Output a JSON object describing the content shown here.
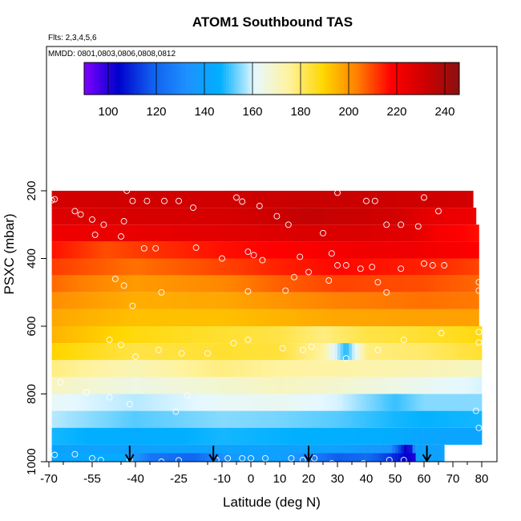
{
  "header": {
    "title": "ATOM1 Southbound TAS",
    "flights": "Flts: 2,3,4,5,6",
    "dates": "MMDD: 0801,0803,0806,0808,0812"
  },
  "chart_data": {
    "type": "heatmap",
    "title": "ATOM1 Southbound TAS",
    "xlabel": "Latitude (deg N)",
    "ylabel": "PSXC (mbar)",
    "xlim": [
      -70,
      82
    ],
    "ylim": [
      1000,
      0
    ],
    "x_ticks": [
      -70,
      -55,
      -40,
      -25,
      -10,
      0,
      10,
      20,
      30,
      40,
      50,
      60,
      70,
      80
    ],
    "x_tick_labels": [
      "-70",
      "-55",
      "-40",
      "-25",
      "-10",
      "0",
      "10",
      "20",
      "30",
      "40",
      "50",
      "60",
      "70",
      "80"
    ],
    "y_ticks": [
      200,
      400,
      600,
      800,
      1000
    ],
    "y_tick_labels": [
      "200",
      "400",
      "600",
      "800",
      "1000"
    ],
    "colorbar": {
      "range": [
        90,
        246
      ],
      "ticks": [
        100,
        120,
        140,
        160,
        180,
        200,
        220,
        240
      ],
      "tick_labels": [
        "100",
        "120",
        "140",
        "160",
        "180",
        "200",
        "220",
        "240"
      ],
      "colors": [
        "#8000ff",
        "#0000cd",
        "#1060ee",
        "#1e90ff",
        "#00b0ff",
        "#e6f8ff",
        "#fff3a0",
        "#ffd700",
        "#ff7f00",
        "#ff0000",
        "#cd0000",
        "#8b1010"
      ]
    },
    "pressure_levels": [
      {
        "p": 225,
        "lat_min": -69,
        "lat_max": 77,
        "tas": [
          [
            -69,
            230
          ],
          [
            -40,
            231
          ],
          [
            -10,
            231
          ],
          [
            20,
            233
          ],
          [
            45,
            232
          ],
          [
            60,
            231
          ],
          [
            77,
            230
          ]
        ]
      },
      {
        "p": 275,
        "lat_min": -69,
        "lat_max": 78,
        "tas": [
          [
            -69,
            227
          ],
          [
            -40,
            229
          ],
          [
            -10,
            229
          ],
          [
            20,
            234
          ],
          [
            40,
            232
          ],
          [
            52,
            230
          ],
          [
            60,
            225
          ],
          [
            78,
            222
          ]
        ]
      },
      {
        "p": 325,
        "lat_min": -69,
        "lat_max": 79,
        "tas": [
          [
            -69,
            222
          ],
          [
            -40,
            224
          ],
          [
            -10,
            226
          ],
          [
            20,
            228
          ],
          [
            40,
            228
          ],
          [
            55,
            226
          ],
          [
            65,
            220
          ],
          [
            79,
            216
          ]
        ]
      },
      {
        "p": 375,
        "lat_min": -69,
        "lat_max": 79,
        "tas": [
          [
            -69,
            216
          ],
          [
            -50,
            209
          ],
          [
            -35,
            212
          ],
          [
            -10,
            216
          ],
          [
            20,
            219
          ],
          [
            40,
            222
          ],
          [
            55,
            222
          ],
          [
            79,
            218
          ]
        ]
      },
      {
        "p": 425,
        "lat_min": -69,
        "lat_max": 79,
        "tas": [
          [
            -69,
            211
          ],
          [
            -40,
            205
          ],
          [
            -10,
            210
          ],
          [
            10,
            214
          ],
          [
            30,
            217
          ],
          [
            60,
            214
          ],
          [
            79,
            210
          ]
        ]
      },
      {
        "p": 475,
        "lat_min": -69,
        "lat_max": 79,
        "tas": [
          [
            -69,
            206
          ],
          [
            -40,
            199
          ],
          [
            -10,
            202
          ],
          [
            10,
            207
          ],
          [
            30,
            210
          ],
          [
            60,
            209
          ],
          [
            79,
            206
          ]
        ]
      },
      {
        "p": 525,
        "lat_min": -69,
        "lat_max": 79,
        "tas": [
          [
            -69,
            201
          ],
          [
            -40,
            196
          ],
          [
            -10,
            197
          ],
          [
            10,
            200
          ],
          [
            30,
            203
          ],
          [
            60,
            205
          ],
          [
            79,
            204
          ]
        ]
      },
      {
        "p": 575,
        "lat_min": -69,
        "lat_max": 79,
        "tas": [
          [
            -69,
            197
          ],
          [
            -40,
            193
          ],
          [
            -10,
            193
          ],
          [
            10,
            195
          ],
          [
            30,
            197
          ],
          [
            60,
            198
          ],
          [
            79,
            198
          ]
        ]
      },
      {
        "p": 625,
        "lat_min": -69,
        "lat_max": 80,
        "tas": [
          [
            -69,
            195
          ],
          [
            -40,
            188
          ],
          [
            -10,
            185
          ],
          [
            10,
            183
          ],
          [
            25,
            178
          ],
          [
            40,
            183
          ],
          [
            60,
            185
          ],
          [
            80,
            188
          ]
        ]
      },
      {
        "p": 675,
        "lat_min": -69,
        "lat_max": 80,
        "tas": [
          [
            -69,
            190
          ],
          [
            -40,
            183
          ],
          [
            -10,
            185
          ],
          [
            10,
            184
          ],
          [
            25,
            175
          ],
          [
            33,
            148
          ],
          [
            40,
            178
          ],
          [
            60,
            180
          ],
          [
            80,
            185
          ]
        ]
      },
      {
        "p": 725,
        "lat_min": -69,
        "lat_max": 80,
        "tas": [
          [
            -69,
            178
          ],
          [
            -40,
            172
          ],
          [
            -10,
            178
          ],
          [
            10,
            175
          ],
          [
            30,
            174
          ],
          [
            60,
            172
          ],
          [
            80,
            170
          ]
        ]
      },
      {
        "p": 775,
        "lat_min": -69,
        "lat_max": 80,
        "tas": [
          [
            -69,
            170
          ],
          [
            -40,
            165
          ],
          [
            -10,
            168
          ],
          [
            10,
            170
          ],
          [
            30,
            168
          ],
          [
            60,
            163
          ],
          [
            80,
            160
          ]
        ]
      },
      {
        "p": 825,
        "lat_min": -69,
        "lat_max": 80,
        "tas": [
          [
            -69,
            162
          ],
          [
            -40,
            158
          ],
          [
            -10,
            162
          ],
          [
            10,
            163
          ],
          [
            30,
            160
          ],
          [
            50,
            150
          ],
          [
            60,
            155
          ],
          [
            80,
            155
          ]
        ]
      },
      {
        "p": 875,
        "lat_min": -69,
        "lat_max": 80,
        "tas": [
          [
            -69,
            158
          ],
          [
            -40,
            152
          ],
          [
            -10,
            155
          ],
          [
            10,
            154
          ],
          [
            30,
            152
          ],
          [
            50,
            148
          ],
          [
            60,
            147
          ],
          [
            80,
            148
          ]
        ]
      },
      {
        "p": 925,
        "lat_min": -69,
        "lat_max": 80,
        "tas": [
          [
            -69,
            148
          ],
          [
            -40,
            145
          ],
          [
            -10,
            148
          ],
          [
            10,
            147
          ],
          [
            30,
            146
          ],
          [
            48,
            145
          ],
          [
            60,
            142
          ],
          [
            80,
            142
          ]
        ]
      },
      {
        "p": 975,
        "lat_min": -69,
        "lat_max": 67,
        "tas": [
          [
            -69,
            141
          ],
          [
            -40,
            140
          ],
          [
            -10,
            141
          ],
          [
            10,
            140
          ],
          [
            30,
            140
          ],
          [
            48,
            135
          ],
          [
            52,
            112
          ],
          [
            55,
            98
          ],
          [
            57,
            140
          ],
          [
            67,
            140
          ]
        ]
      },
      {
        "p": 1000,
        "lat_min": -69,
        "lat_max": 57,
        "tas": [
          [
            -69,
            142
          ],
          [
            -45,
            145
          ],
          [
            -35,
            125
          ],
          [
            -20,
            120
          ],
          [
            -5,
            138
          ],
          [
            10,
            140
          ],
          [
            30,
            118
          ],
          [
            40,
            122
          ],
          [
            50,
            110
          ],
          [
            57,
            100
          ]
        ]
      }
    ],
    "observations": [
      [
        -68,
        225
      ],
      [
        -69,
        228
      ],
      [
        -61,
        260
      ],
      [
        -59,
        270
      ],
      [
        -55,
        285
      ],
      [
        -54,
        330
      ],
      [
        -51,
        300
      ],
      [
        -44,
        290
      ],
      [
        -43,
        200
      ],
      [
        -41,
        230
      ],
      [
        -36,
        230
      ],
      [
        -30,
        230
      ],
      [
        -25,
        230
      ],
      [
        -20,
        250
      ],
      [
        -5,
        220
      ],
      [
        -3,
        232
      ],
      [
        3,
        245
      ],
      [
        9,
        275
      ],
      [
        13,
        300
      ],
      [
        22,
        183
      ],
      [
        30,
        206
      ],
      [
        40,
        230
      ],
      [
        43,
        230
      ],
      [
        47,
        300
      ],
      [
        52,
        300
      ],
      [
        58,
        305
      ],
      [
        60,
        220
      ],
      [
        65,
        260
      ],
      [
        -45,
        335
      ],
      [
        -37,
        370
      ],
      [
        -33,
        370
      ],
      [
        -19,
        368
      ],
      [
        -10,
        400
      ],
      [
        -1,
        380
      ],
      [
        1,
        390
      ],
      [
        4,
        405
      ],
      [
        17,
        395
      ],
      [
        25,
        325
      ],
      [
        28,
        385
      ],
      [
        30,
        420
      ],
      [
        42,
        425
      ],
      [
        52,
        430
      ],
      [
        60,
        415
      ],
      [
        63,
        420
      ],
      [
        67,
        420
      ],
      [
        -47,
        460
      ],
      [
        -44,
        480
      ],
      [
        -41,
        540
      ],
      [
        -31,
        500
      ],
      [
        -1,
        497
      ],
      [
        12,
        495
      ],
      [
        15,
        455
      ],
      [
        20,
        440
      ],
      [
        27,
        465
      ],
      [
        33,
        420
      ],
      [
        38,
        430
      ],
      [
        44,
        470
      ],
      [
        47,
        500
      ],
      [
        79,
        470
      ],
      [
        79,
        495
      ],
      [
        -49,
        640
      ],
      [
        -45,
        655
      ],
      [
        -40,
        690
      ],
      [
        -32,
        670
      ],
      [
        -24,
        680
      ],
      [
        -15,
        680
      ],
      [
        -6,
        650
      ],
      [
        -1,
        640
      ],
      [
        11,
        665
      ],
      [
        18,
        670
      ],
      [
        21,
        660
      ],
      [
        33,
        695
      ],
      [
        44,
        670
      ],
      [
        53,
        640
      ],
      [
        66,
        620
      ],
      [
        79,
        648
      ],
      [
        79,
        617
      ],
      [
        -66,
        765
      ],
      [
        -57,
        795
      ],
      [
        -49,
        810
      ],
      [
        -42,
        830
      ],
      [
        -26,
        852
      ],
      [
        -22,
        805
      ],
      [
        78,
        850
      ],
      [
        79,
        900
      ],
      [
        -68,
        980
      ],
      [
        -61,
        978
      ],
      [
        -55,
        990
      ],
      [
        -52,
        995
      ],
      [
        -42,
        995
      ],
      [
        -31,
        1000
      ],
      [
        -25,
        996
      ],
      [
        -12,
        995
      ],
      [
        -8,
        990
      ],
      [
        -3,
        990
      ],
      [
        0,
        990
      ],
      [
        5,
        990
      ],
      [
        14,
        990
      ],
      [
        18,
        995
      ],
      [
        22,
        990
      ],
      [
        28,
        1005
      ],
      [
        39,
        1005
      ],
      [
        48,
        995
      ],
      [
        53,
        995
      ]
    ],
    "arrows": [
      -42,
      -13,
      20,
      61
    ]
  }
}
